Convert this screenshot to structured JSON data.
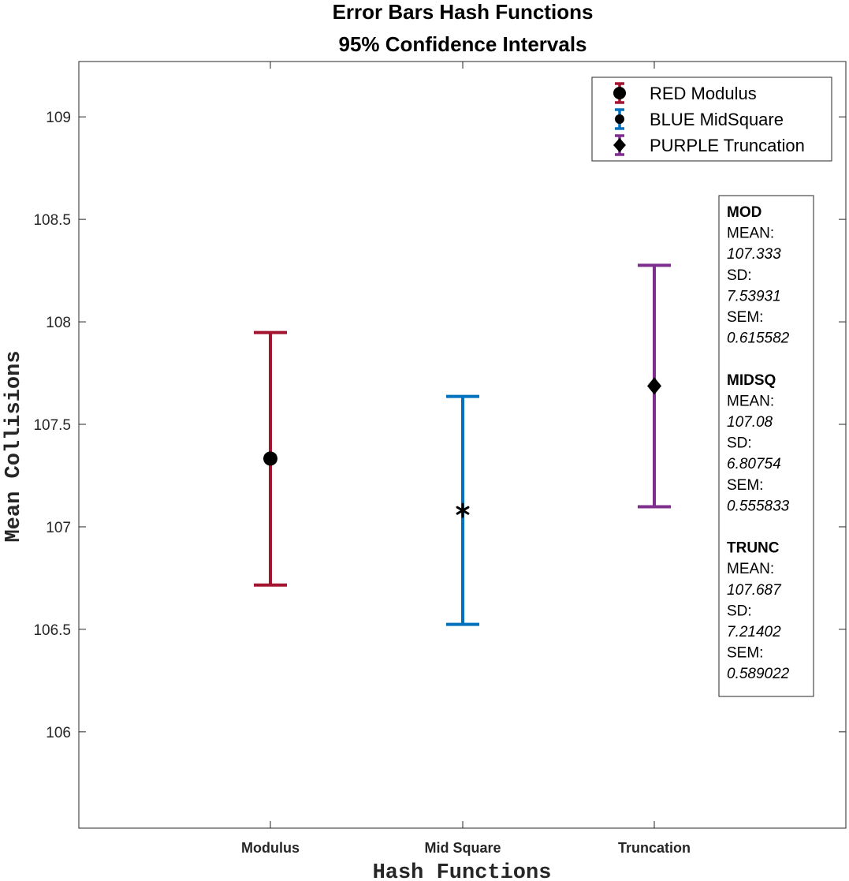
{
  "chart_data": {
    "type": "errorbar",
    "title": [
      "Error Bars Hash Functions",
      "95% Confidence Intervals"
    ],
    "xlabel": "Hash Functions",
    "ylabel": "Mean Collisions",
    "categories": [
      "Modulus",
      "Mid Square",
      "Truncation"
    ],
    "ylim": [
      105.53,
      109.27
    ],
    "yticks": [
      106,
      106.5,
      107,
      107.5,
      108,
      108.5,
      109
    ],
    "ytick_labels": [
      "106",
      "106.5",
      "107",
      "107.5",
      "108",
      "108.5",
      "109"
    ],
    "grid": false,
    "legend_position": "top-right",
    "series": [
      {
        "name": "RED Modulus",
        "color": "#A2142F",
        "marker": "circle",
        "category": "Modulus",
        "mean": 107.333,
        "lower": 106.716,
        "upper": 107.948
      },
      {
        "name": "BLUE MidSquare",
        "color": "#0072BD",
        "marker": "asterisk",
        "category": "Mid Square",
        "mean": 107.08,
        "lower": 106.524,
        "upper": 107.636
      },
      {
        "name": "PURPLE Truncation",
        "color": "#7E2F8E",
        "marker": "diamond",
        "category": "Truncation",
        "mean": 107.687,
        "lower": 107.098,
        "upper": 108.276
      }
    ],
    "annotation": [
      {
        "heading": "MOD",
        "rows": [
          [
            "MEAN:",
            "107.333"
          ],
          [
            "SD:",
            "7.53931"
          ],
          [
            "SEM:",
            "0.615582"
          ]
        ]
      },
      {
        "heading": "MIDSQ",
        "rows": [
          [
            "MEAN:",
            "107.08"
          ],
          [
            "SD:",
            "6.80754"
          ],
          [
            "SEM:",
            "0.555833"
          ]
        ]
      },
      {
        "heading": "TRUNC",
        "rows": [
          [
            "MEAN:",
            "107.687"
          ],
          [
            "SD:",
            "7.21402"
          ],
          [
            "SEM:",
            "0.589022"
          ]
        ]
      }
    ]
  }
}
